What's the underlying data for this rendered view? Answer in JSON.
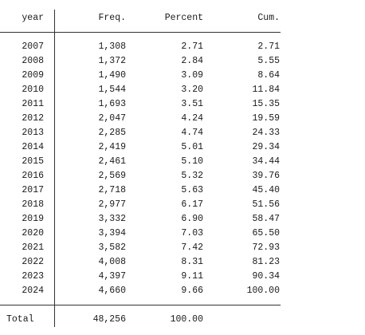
{
  "table": {
    "headers": [
      "year",
      "Freq.",
      "Percent",
      "Cum."
    ],
    "rows": [
      [
        "2007",
        "1,308",
        "2.71",
        "2.71"
      ],
      [
        "2008",
        "1,372",
        "2.84",
        "5.55"
      ],
      [
        "2009",
        "1,490",
        "3.09",
        "8.64"
      ],
      [
        "2010",
        "1,544",
        "3.20",
        "11.84"
      ],
      [
        "2011",
        "1,693",
        "3.51",
        "15.35"
      ],
      [
        "2012",
        "2,047",
        "4.24",
        "19.59"
      ],
      [
        "2013",
        "2,285",
        "4.74",
        "24.33"
      ],
      [
        "2014",
        "2,419",
        "5.01",
        "29.34"
      ],
      [
        "2015",
        "2,461",
        "5.10",
        "34.44"
      ],
      [
        "2016",
        "2,569",
        "5.32",
        "39.76"
      ],
      [
        "2017",
        "2,718",
        "5.63",
        "45.40"
      ],
      [
        "2018",
        "2,977",
        "6.17",
        "51.56"
      ],
      [
        "2019",
        "3,332",
        "6.90",
        "58.47"
      ],
      [
        "2020",
        "3,394",
        "7.03",
        "65.50"
      ],
      [
        "2021",
        "3,582",
        "7.42",
        "72.93"
      ],
      [
        "2022",
        "4,008",
        "8.31",
        "81.23"
      ],
      [
        "2023",
        "4,397",
        "9.11",
        "90.34"
      ],
      [
        "2024",
        "4,660",
        "9.66",
        "100.00"
      ]
    ],
    "total": [
      "Total",
      "48,256",
      "100.00"
    ]
  }
}
